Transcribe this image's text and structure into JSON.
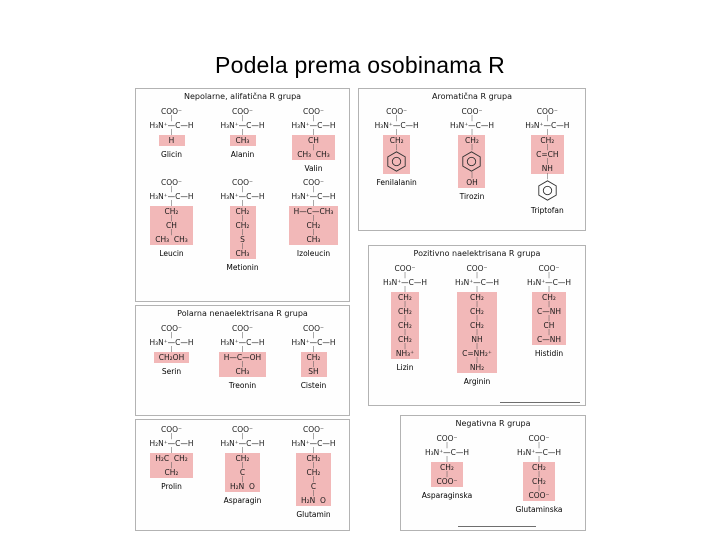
{
  "title": "Podela prema osobinama R",
  "colors": {
    "highlight": "#f2b8b8",
    "panel_border": "#b3b3b3"
  },
  "panels": [
    {
      "header": "Nepolarne, alifatična R grupa",
      "rows": [
        [
          {
            "name": "Glicin",
            "lines": [
              "COO⁻",
              "H₃N⁺—C—H",
              "H"
            ],
            "hl": [
              2
            ]
          },
          {
            "name": "Alanin",
            "lines": [
              "COO⁻",
              "H₃N⁺—C—H",
              "CH₃"
            ],
            "hl": [
              2
            ]
          },
          {
            "name": "Valin",
            "lines": [
              "COO⁻",
              "H₃N⁺—C—H",
              "CH",
              "CH₃  CH₃"
            ],
            "hl": [
              2,
              3
            ]
          }
        ],
        [
          {
            "name": "Leucin",
            "lines": [
              "COO⁻",
              "H₃N⁺—C—H",
              "CH₂",
              "CH",
              "CH₃  CH₃"
            ],
            "hl": [
              2,
              3,
              4
            ]
          },
          {
            "name": "Metionin",
            "lines": [
              "COO⁻",
              "H₃N⁺—C—H",
              "CH₂",
              "CH₂",
              "S",
              "CH₃"
            ],
            "hl": [
              2,
              3,
              4,
              5
            ]
          },
          {
            "name": "Izoleucin",
            "lines": [
              "COO⁻",
              "H₃N⁺—C—H",
              "H—C—CH₃",
              "CH₂",
              "CH₃"
            ],
            "hl": [
              2,
              3,
              4
            ]
          }
        ]
      ]
    },
    {
      "header": "Aromatična R grupa",
      "rows": [
        [
          {
            "name": "Fenilalanin",
            "lines": [
              "COO⁻",
              "H₃N⁺—C—H",
              "CH₂",
              "@benzene"
            ],
            "hl": [
              2,
              3
            ]
          },
          {
            "name": "Tirozin",
            "lines": [
              "COO⁻",
              "H₃N⁺—C—H",
              "CH₂",
              "@benzene",
              "OH"
            ],
            "hl": [
              2,
              3,
              4
            ]
          },
          {
            "name": "Triptofan",
            "lines": [
              "COO⁻",
              "H₃N⁺—C—H",
              "CH₂",
              "C=CH",
              "NH",
              "@benzene"
            ],
            "hl": [
              2,
              3,
              4
            ]
          }
        ]
      ]
    },
    {
      "header": "Pozitivno naelektrisana R grupa",
      "rows": [
        [
          {
            "name": "Lizin",
            "lines": [
              "COO⁻",
              "H₃N⁺—C—H",
              "CH₂",
              "CH₂",
              "CH₂",
              "CH₂",
              "NH₃⁺"
            ],
            "hl": [
              2,
              3,
              4,
              5,
              6
            ]
          },
          {
            "name": "Arginin",
            "lines": [
              "COO⁻",
              "H₃N⁺—C—H",
              "CH₂",
              "CH₂",
              "CH₂",
              "NH",
              "C=NH₂⁺",
              "NH₂"
            ],
            "hl": [
              2,
              3,
              4,
              5,
              6,
              7
            ]
          },
          {
            "name": "Histidin",
            "lines": [
              "COO⁻",
              "H₃N⁺—C—H",
              "CH₂",
              "C—NH",
              "CH",
              "C—NH"
            ],
            "hl": [
              2,
              3,
              4,
              5
            ]
          }
        ]
      ]
    },
    {
      "header": "Polarna nenaelektrisana R grupa",
      "rows": [
        [
          {
            "name": "Serin",
            "lines": [
              "COO⁻",
              "H₃N⁺—C—H",
              "CH₂OH"
            ],
            "hl": [
              2
            ]
          },
          {
            "name": "Treonin",
            "lines": [
              "COO⁻",
              "H₃N⁺—C—H",
              "H—C—OH",
              "CH₃"
            ],
            "hl": [
              2,
              3
            ]
          },
          {
            "name": "Cistein",
            "lines": [
              "COO⁻",
              "H₃N⁺—C—H",
              "CH₂",
              "SH"
            ],
            "hl": [
              2,
              3
            ]
          }
        ]
      ]
    },
    {
      "header": "",
      "rows": [
        [
          {
            "name": "Prolin",
            "lines": [
              "COO⁻",
              "H₂N⁺—C—H",
              "H₂C  CH₂",
              "CH₂"
            ],
            "hl": [
              2,
              3
            ]
          },
          {
            "name": "Asparagin",
            "lines": [
              "COO⁻",
              "H₃N⁺—C—H",
              "CH₂",
              "C",
              "H₂N  O"
            ],
            "hl": [
              2,
              3,
              4
            ]
          },
          {
            "name": "Glutamin",
            "lines": [
              "COO⁻",
              "H₃N⁺—C—H",
              "CH₂",
              "CH₂",
              "C",
              "H₂N  O"
            ],
            "hl": [
              2,
              3,
              4,
              5
            ]
          }
        ]
      ]
    },
    {
      "header": "Negativna R grupa",
      "rows": [
        [
          {
            "name": "Asparaginska",
            "lines": [
              "COO⁻",
              "H₃N⁺—C—H",
              "CH₂",
              "COO⁻"
            ],
            "hl": [
              2,
              3
            ]
          },
          {
            "name": "Glutaminska",
            "lines": [
              "COO⁻",
              "H₃N⁺—C—H",
              "CH₂",
              "CH₂",
              "COO⁻"
            ],
            "hl": [
              2,
              3,
              4
            ]
          }
        ]
      ]
    }
  ]
}
